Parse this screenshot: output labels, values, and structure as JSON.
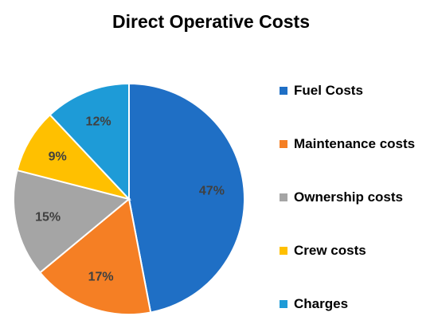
{
  "chart_data": {
    "type": "pie",
    "title": "Direct Operative Costs",
    "categories": [
      "Fuel Costs",
      "Maintenance costs",
      "Ownership costs",
      "Crew costs",
      "Charges"
    ],
    "values": [
      47,
      17,
      15,
      9,
      12
    ],
    "data_labels": [
      "47%",
      "17%",
      "15%",
      "9%",
      "12%"
    ],
    "colors": [
      "#1F6FC5",
      "#F57F24",
      "#A5A5A5",
      "#FFC000",
      "#1E9BD7"
    ],
    "start_angle": "12 o'clock",
    "direction": "clockwise",
    "legend": {
      "placement": "right",
      "entries": [
        "Fuel Costs",
        "Maintenance costs",
        "Ownership costs",
        "Crew costs",
        "Charges"
      ]
    }
  }
}
